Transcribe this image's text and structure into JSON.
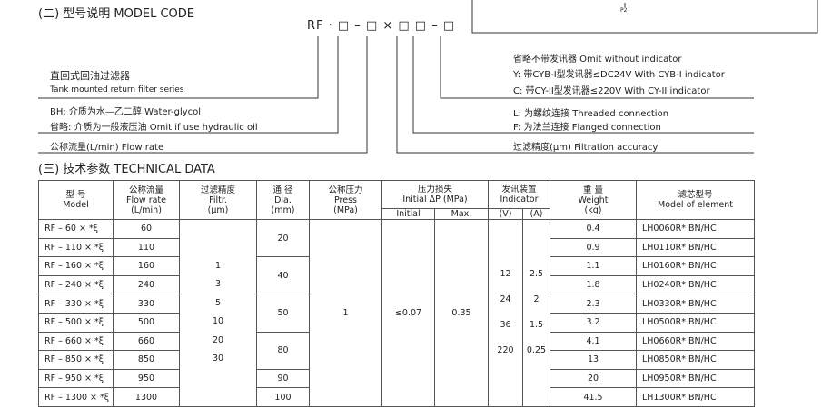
{
  "header": {
    "title": "(二) 型号说明 MODEL CODE",
    "corner_label": "P2"
  },
  "model_code": {
    "code": "RF · □ – □ × □ □ – □",
    "series": [
      "直回式回油过滤器",
      "Tank mounted return filter series"
    ],
    "medium": [
      "BH: 介质为水—乙二醇  Water-glycol",
      "省略: 介质为一般液压油  Omit if use hydraulic oil"
    ],
    "flow": "公称流量(L/min)  Flow rate",
    "indicator": [
      "省略不带发讯器  Omit without indicator",
      "Y: 带CYB-I型发讯器≤DC24V  With CYB-I indicator",
      "C: 带CY-II型发讯器≤220V  With CY-II indicator"
    ],
    "connection": [
      "L: 为螺纹连接  Threaded connection",
      "F: 为法兰连接  Flanged connection"
    ],
    "filtration": "过滤精度(μm)  Filtration accuracy"
  },
  "section_title": "(三) 技术参数 TECHNICAL DATA",
  "table": {
    "headers": {
      "model": [
        "型 号",
        "Model"
      ],
      "flow": [
        "公称流量",
        "Flow rate",
        "(L/min)"
      ],
      "filtration": [
        "过滤精度",
        "Filtr.",
        "(μm)"
      ],
      "diameter": [
        "通 径",
        "Dia.",
        "(mm)"
      ],
      "pressure": [
        "公称压力",
        "Press",
        "(MPa)"
      ],
      "pressure_loss": [
        "压力损失",
        "Initial ΔP (MPa)"
      ],
      "initial": "Initial",
      "max": "Max.",
      "indicator": [
        "发讯装置",
        "Indicator"
      ],
      "voltage": "(V)",
      "current": "(A)",
      "weight": [
        "重 量",
        "Weight",
        "(kg)"
      ],
      "element": [
        "滤芯型号",
        "Model of element"
      ]
    },
    "rows": [
      [
        "RF – 60 × *ξ",
        60,
        0.4,
        "LH0060R* BN/HC"
      ],
      [
        "RF – 110 × *ξ",
        110,
        0.9,
        "LH0110R* BN/HC"
      ],
      [
        "RF – 160 × *ξ",
        160,
        1.1,
        "LH0160R* BN/HC"
      ],
      [
        "RF – 240 × *ξ",
        240,
        1.8,
        "LH0240R* BN/HC"
      ],
      [
        "RF – 330 × *ξ",
        330,
        2.3,
        "LH0330R* BN/HC"
      ],
      [
        "RF – 500 × *ξ",
        500,
        3.2,
        "LH0500R* BN/HC"
      ],
      [
        "RF – 660 × *ξ",
        660,
        4.1,
        "LH0660R* BN/HC"
      ],
      [
        "RF – 850 × *ξ",
        850,
        13,
        "LH0850R* BN/HC"
      ],
      [
        "RF – 950 × *ξ",
        950,
        20,
        "LH0950R* BN/HC"
      ],
      [
        "RF – 1300 × *ξ",
        1300,
        41.5,
        "LH1300R* BN/HC"
      ]
    ],
    "diameters": [
      20,
      40,
      50,
      80,
      90,
      100
    ],
    "filtration": [
      1,
      3,
      5,
      10,
      20,
      30
    ],
    "pressure": 1,
    "pressure_loss": {
      "initial": "≤0.07",
      "max": 0.35
    },
    "indicator": {
      "voltage": [
        12,
        24,
        36,
        220
      ],
      "current": [
        2.5,
        2,
        1.5,
        0.25
      ]
    }
  }
}
